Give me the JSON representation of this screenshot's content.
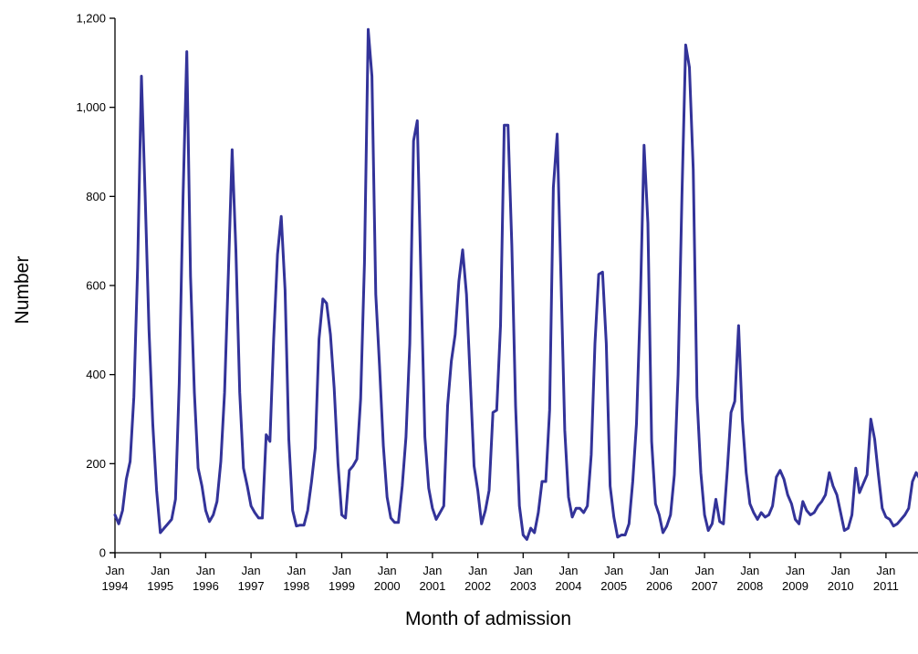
{
  "chart_data": {
    "type": "line",
    "title": "",
    "xlabel": "Month of admission",
    "ylabel": "Number",
    "ylim": [
      0,
      1200
    ],
    "yticks": [
      0,
      200,
      400,
      600,
      800,
      1000,
      1200
    ],
    "ytick_labels": [
      "0",
      "200",
      "400",
      "600",
      "800",
      "1,000",
      "1,200"
    ],
    "x_tick_labels": [
      {
        "month": "Jan",
        "year": "1994"
      },
      {
        "month": "Jan",
        "year": "1995"
      },
      {
        "month": "Jan",
        "year": "1996"
      },
      {
        "month": "Jan",
        "year": "1997"
      },
      {
        "month": "Jan",
        "year": "1998"
      },
      {
        "month": "Jan",
        "year": "1999"
      },
      {
        "month": "Jan",
        "year": "2000"
      },
      {
        "month": "Jan",
        "year": "2001"
      },
      {
        "month": "Jan",
        "year": "2002"
      },
      {
        "month": "Jan",
        "year": "2003"
      },
      {
        "month": "Jan",
        "year": "2004"
      },
      {
        "month": "Jan",
        "year": "2005"
      },
      {
        "month": "Jan",
        "year": "2006"
      },
      {
        "month": "Jan",
        "year": "2007"
      },
      {
        "month": "Jan",
        "year": "2008"
      },
      {
        "month": "Jan",
        "year": "2009"
      },
      {
        "month": "Jan",
        "year": "2010"
      },
      {
        "month": "Jan",
        "year": "2011"
      }
    ],
    "grid": false,
    "legend": "none",
    "line_color": "#333399",
    "series": [
      {
        "values": [
          85,
          65,
          95,
          165,
          205,
          350,
          640,
          1070,
          800,
          500,
          290,
          140,
          45,
          55,
          65,
          75,
          120,
          380,
          800,
          1125,
          620,
          360,
          190,
          150,
          95,
          70,
          85,
          115,
          205,
          360,
          630,
          905,
          680,
          360,
          190,
          150,
          105,
          90,
          78,
          78,
          265,
          250,
          480,
          670,
          755,
          590,
          255,
          95,
          60,
          62,
          62,
          95,
          160,
          235,
          480,
          570,
          560,
          490,
          370,
          200,
          85,
          78,
          185,
          195,
          210,
          345,
          650,
          1175,
          1070,
          580,
          420,
          240,
          125,
          78,
          68,
          68,
          150,
          260,
          470,
          925,
          970,
          600,
          260,
          145,
          100,
          75,
          90,
          105,
          330,
          430,
          490,
          610,
          680,
          580,
          390,
          195,
          140,
          65,
          95,
          140,
          315,
          320,
          510,
          960,
          960,
          690,
          330,
          105,
          40,
          30,
          55,
          45,
          90,
          160,
          160,
          320,
          820,
          940,
          620,
          275,
          125,
          80,
          100,
          100,
          90,
          105,
          220,
          470,
          625,
          630,
          470,
          150,
          80,
          35,
          40,
          40,
          65,
          160,
          290,
          560,
          915,
          740,
          250,
          110,
          85,
          45,
          60,
          85,
          175,
          400,
          800,
          1140,
          1090,
          860,
          350,
          180,
          85,
          50,
          65,
          120,
          70,
          65,
          185,
          315,
          340,
          510,
          300,
          180,
          110,
          90,
          75,
          90,
          80,
          85,
          105,
          170,
          185,
          165,
          130,
          110,
          75,
          65,
          115,
          95,
          85,
          90,
          105,
          115,
          130,
          180,
          150,
          130,
          90,
          50,
          55,
          85,
          190,
          135,
          155,
          175,
          300,
          255,
          175,
          100,
          80,
          75,
          60,
          65,
          75,
          85,
          100,
          160,
          180,
          165
        ]
      }
    ]
  }
}
